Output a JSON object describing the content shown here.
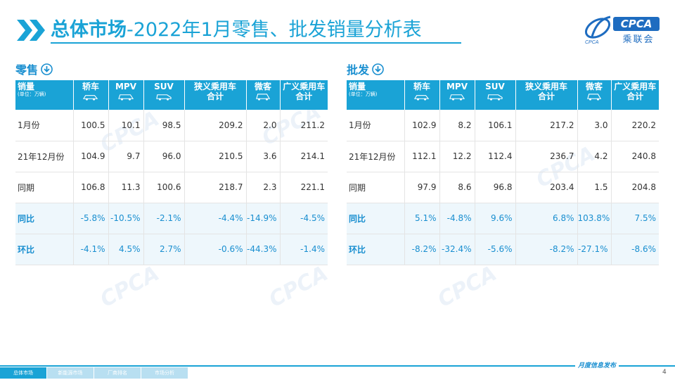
{
  "header": {
    "title_bold": "总体市场",
    "title_rest": "-2022年1月零售、批发销量分析表",
    "logo_badge": "CPCA",
    "logo_cn": "乘联会",
    "logo_mark_text": "CPCA"
  },
  "sections": [
    {
      "title": "零售",
      "columns": [
        {
          "main": "销量",
          "sub": "(单位：万辆)"
        },
        {
          "main": "轿车",
          "icon": "sedan-icon"
        },
        {
          "main": "MPV",
          "icon": "mpv-icon"
        },
        {
          "main": "SUV",
          "icon": "suv-icon"
        },
        {
          "main": "狭义乘用车",
          "main2": "合计"
        },
        {
          "main": "微客",
          "icon": "minivan-icon"
        },
        {
          "main": "广义乘用车",
          "main2": "合计"
        }
      ],
      "rows": [
        {
          "label": "1月份",
          "values": [
            "100.5",
            "10.1",
            "98.5",
            "209.2",
            "2.0",
            "211.2"
          ]
        },
        {
          "label": "21年12月份",
          "values": [
            "104.9",
            "9.7",
            "96.0",
            "210.5",
            "3.6",
            "214.1"
          ]
        },
        {
          "label": "同期",
          "values": [
            "106.8",
            "11.3",
            "100.6",
            "218.7",
            "2.3",
            "221.1"
          ]
        },
        {
          "label": "同比",
          "values": [
            "-5.8%",
            "-10.5%",
            "-2.1%",
            "-4.4%",
            "-14.9%",
            "-4.5%"
          ],
          "ratio": true
        },
        {
          "label": "环比",
          "values": [
            "-4.1%",
            "4.5%",
            "2.7%",
            "-0.6%",
            "-44.3%",
            "-1.4%"
          ],
          "ratio": true
        }
      ]
    },
    {
      "title": "批发",
      "columns": [
        {
          "main": "销量",
          "sub": "(单位：万辆)"
        },
        {
          "main": "轿车",
          "icon": "sedan-icon"
        },
        {
          "main": "MPV",
          "icon": "mpv-icon"
        },
        {
          "main": "SUV",
          "icon": "suv-icon"
        },
        {
          "main": "狭义乘用车",
          "main2": "合计"
        },
        {
          "main": "微客",
          "icon": "minivan-icon"
        },
        {
          "main": "广义乘用车",
          "main2": "合计"
        }
      ],
      "rows": [
        {
          "label": "1月份",
          "values": [
            "102.9",
            "8.2",
            "106.1",
            "217.2",
            "3.0",
            "220.2"
          ]
        },
        {
          "label": "21年12月份",
          "values": [
            "112.1",
            "12.2",
            "112.4",
            "236.7",
            "4.2",
            "240.8"
          ]
        },
        {
          "label": "同期",
          "values": [
            "97.9",
            "8.6",
            "96.8",
            "203.4",
            "1.5",
            "204.8"
          ]
        },
        {
          "label": "同比",
          "values": [
            "5.1%",
            "-4.8%",
            "9.6%",
            "6.8%",
            "103.8%",
            "7.5%"
          ],
          "ratio": true
        },
        {
          "label": "环比",
          "values": [
            "-8.2%",
            "-32.4%",
            "-5.6%",
            "-8.2%",
            "-27.1%",
            "-8.6%"
          ],
          "ratio": true
        }
      ]
    }
  ],
  "footer": {
    "tabs": [
      "总体市场",
      "新能源市场",
      "厂商排名",
      "市场分析"
    ],
    "active_tab": 0,
    "note": "月度信息发布",
    "page": "4"
  },
  "colors": {
    "accent": "#1aa3d6",
    "brand": "#1e6cc0",
    "ratio_text": "#1a8fd0"
  }
}
